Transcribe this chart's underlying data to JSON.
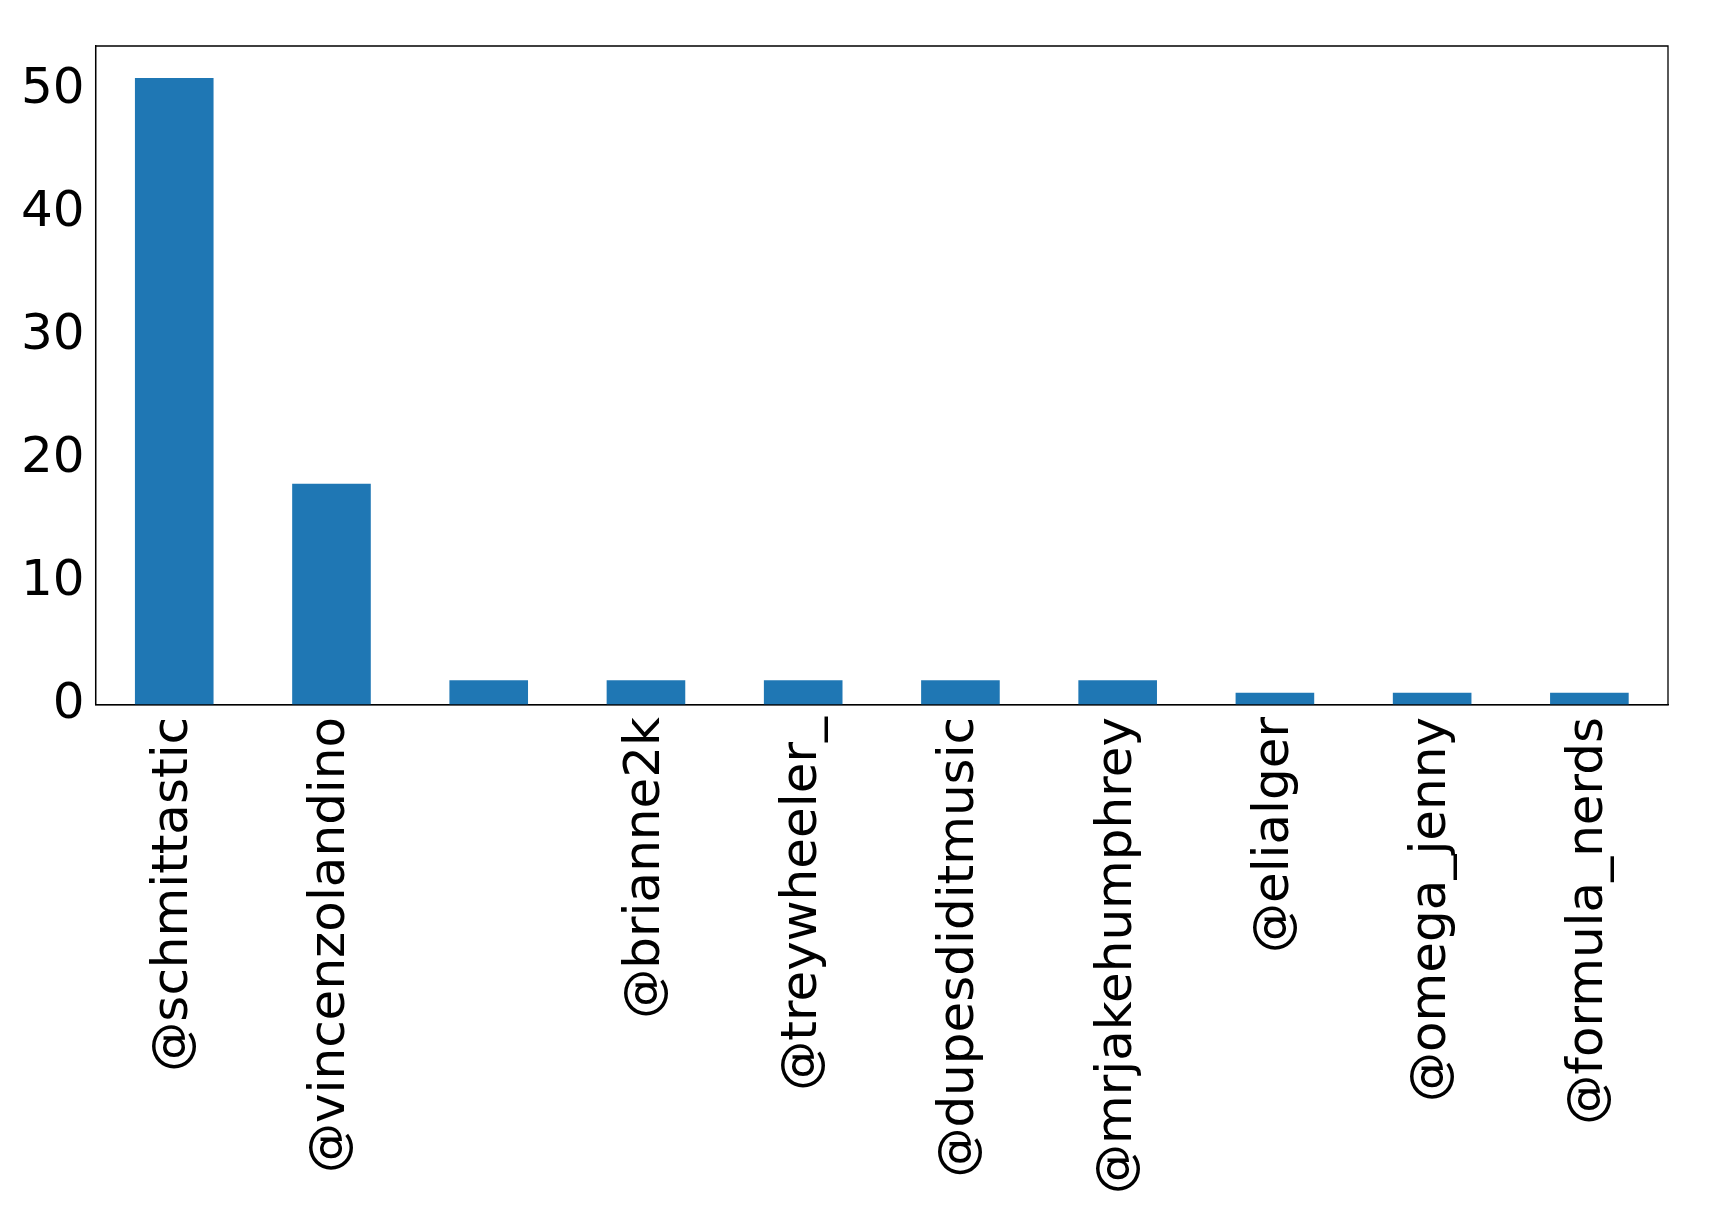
{
  "chart_data": {
    "type": "bar",
    "categories": [
      "@schmittastic",
      "@vincenzolandino",
      null,
      "@brianne2k",
      "@treywheeler_",
      "@dupesdiditmusic",
      "@mrjakehumphrey",
      "@elialger",
      "@omega_jenny",
      "@formula_nerds"
    ],
    "values": [
      51,
      18,
      2,
      2,
      2,
      2,
      2,
      1,
      1,
      1
    ],
    "color": "#1f77b4",
    "ylim": [
      0,
      53.6
    ],
    "yticks": [
      0,
      10,
      20,
      30,
      40,
      50
    ],
    "grid": false,
    "legend": false
  }
}
